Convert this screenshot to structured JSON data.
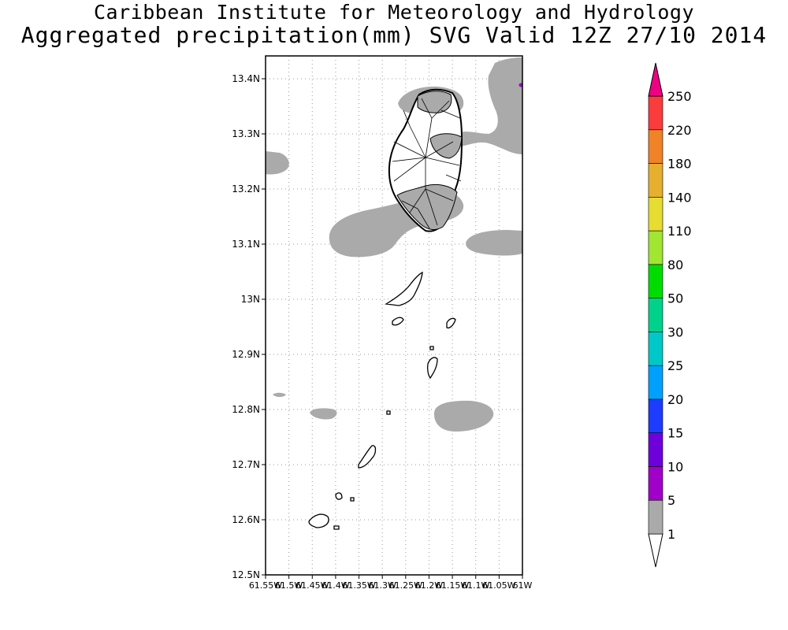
{
  "header": {
    "institute": "Caribbean Institute for Meteorology and Hydrology",
    "product": "Aggregated precipitation(mm) SVG Valid 12Z 27/10 2014"
  },
  "map": {
    "lat_ticks": [
      "12.5N",
      "12.6N",
      "12.7N",
      "12.8N",
      "12.9N",
      "13N",
      "13.1N",
      "13.2N",
      "13.3N",
      "13.4N"
    ],
    "lon_ticks": [
      "61.55W",
      "61.5W",
      "61.45W",
      "61.4W",
      "61.35W",
      "61.3W",
      "61.25W",
      "61.2W",
      "61.15W",
      "61.1W",
      "61.05W",
      "61W"
    ],
    "grid": true,
    "precip_shading_color": "#aaaaaa",
    "island_outline_color": "#000000"
  },
  "legend": {
    "levels": [
      "1",
      "5",
      "10",
      "15",
      "20",
      "25",
      "30",
      "50",
      "80",
      "110",
      "140",
      "180",
      "220",
      "250"
    ],
    "colors": [
      "#aaaaaa",
      "#a000c8",
      "#6e00dc",
      "#1e3cff",
      "#00a0ff",
      "#00c8c8",
      "#00d28c",
      "#00dc00",
      "#a0e632",
      "#e6dc32",
      "#e6af2d",
      "#f08228",
      "#fa3c3c",
      "#f00082"
    ]
  }
}
